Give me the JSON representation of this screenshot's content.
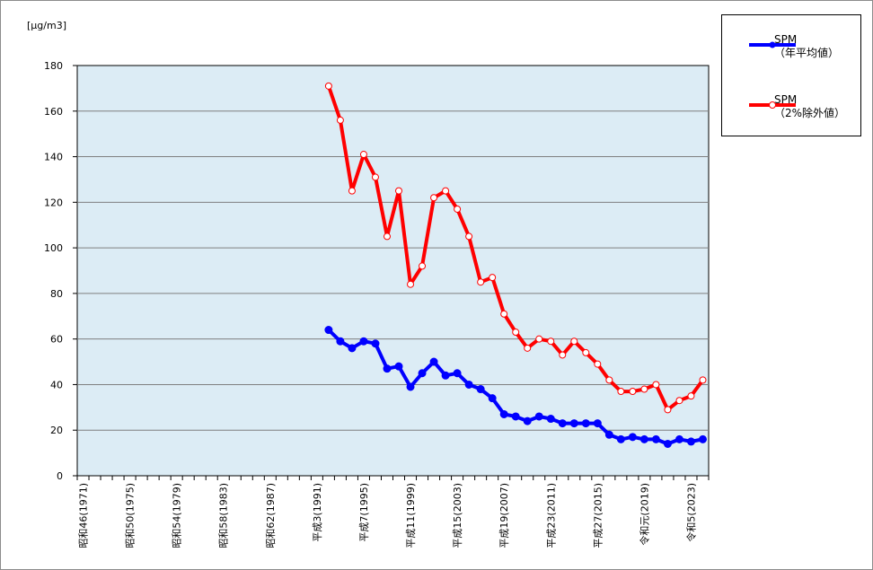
{
  "chart_data": {
    "type": "line",
    "ylabel": "[μg/m3]",
    "ylim": [
      0,
      180
    ],
    "yticks": [
      0,
      20,
      40,
      60,
      80,
      100,
      120,
      140,
      160,
      180
    ],
    "grid": true,
    "legend_position": "top-right",
    "background_color": "#dcecf5",
    "x": [
      1971,
      1972,
      1973,
      1974,
      1975,
      1976,
      1977,
      1978,
      1979,
      1980,
      1981,
      1982,
      1983,
      1984,
      1985,
      1986,
      1987,
      1988,
      1989,
      1990,
      1991,
      1992,
      1993,
      1994,
      1995,
      1996,
      1997,
      1998,
      1999,
      2000,
      2001,
      2002,
      2003,
      2004,
      2005,
      2006,
      2007,
      2008,
      2009,
      2010,
      2011,
      2012,
      2013,
      2014,
      2015,
      2016,
      2017,
      2018,
      2019,
      2020,
      2021,
      2022,
      2023,
      2024
    ],
    "xtick_labels": [
      {
        "x": 1971,
        "label": "昭和46(1971)"
      },
      {
        "x": 1975,
        "label": "昭和50(1975)"
      },
      {
        "x": 1979,
        "label": "昭和54(1979)"
      },
      {
        "x": 1983,
        "label": "昭和58(1983)"
      },
      {
        "x": 1987,
        "label": "昭和62(1987)"
      },
      {
        "x": 1991,
        "label": "平成3(1991)"
      },
      {
        "x": 1995,
        "label": "平成7(1995)"
      },
      {
        "x": 1999,
        "label": "平成11(1999)"
      },
      {
        "x": 2003,
        "label": "平成15(2003)"
      },
      {
        "x": 2007,
        "label": "平成19(2007)"
      },
      {
        "x": 2011,
        "label": "平成23(2011)"
      },
      {
        "x": 2015,
        "label": "平成27(2015)"
      },
      {
        "x": 2019,
        "label": "令和元(2019)"
      },
      {
        "x": 2023,
        "label": "令和5(2023)"
      }
    ],
    "series": [
      {
        "name": "SPM\n（年平均値）",
        "legend_lines": [
          "SPM",
          "（年平均値）"
        ],
        "color": "#0000ff",
        "marker": "filled-circle",
        "points": [
          [
            1992,
            64
          ],
          [
            1993,
            59
          ],
          [
            1994,
            56
          ],
          [
            1995,
            59
          ],
          [
            1996,
            58
          ],
          [
            1997,
            47
          ],
          [
            1998,
            48
          ],
          [
            1999,
            39
          ],
          [
            2000,
            45
          ],
          [
            2001,
            50
          ],
          [
            2002,
            44
          ],
          [
            2003,
            45
          ],
          [
            2004,
            40
          ],
          [
            2005,
            38
          ],
          [
            2006,
            34
          ],
          [
            2007,
            27
          ],
          [
            2008,
            26
          ],
          [
            2009,
            24
          ],
          [
            2010,
            26
          ],
          [
            2011,
            25
          ],
          [
            2012,
            23
          ],
          [
            2013,
            23
          ],
          [
            2014,
            23
          ],
          [
            2015,
            23
          ],
          [
            2016,
            18
          ],
          [
            2017,
            16
          ],
          [
            2018,
            17
          ],
          [
            2019,
            16
          ],
          [
            2020,
            16
          ],
          [
            2021,
            14
          ],
          [
            2022,
            16
          ],
          [
            2023,
            15
          ],
          [
            2024,
            16
          ]
        ]
      },
      {
        "name": "SPM\n（2%除外値）",
        "legend_lines": [
          "SPM",
          "（2%除外値）"
        ],
        "color": "#ff0000",
        "marker": "open-circle",
        "points": [
          [
            1992,
            171
          ],
          [
            1993,
            156
          ],
          [
            1994,
            125
          ],
          [
            1995,
            141
          ],
          [
            1996,
            131
          ],
          [
            1997,
            105
          ],
          [
            1998,
            125
          ],
          [
            1999,
            84
          ],
          [
            2000,
            92
          ],
          [
            2001,
            122
          ],
          [
            2002,
            125
          ],
          [
            2003,
            117
          ],
          [
            2004,
            105
          ],
          [
            2005,
            85
          ],
          [
            2006,
            87
          ],
          [
            2007,
            71
          ],
          [
            2008,
            63
          ],
          [
            2009,
            56
          ],
          [
            2010,
            60
          ],
          [
            2011,
            59
          ],
          [
            2012,
            53
          ],
          [
            2013,
            59
          ],
          [
            2014,
            54
          ],
          [
            2015,
            49
          ],
          [
            2016,
            42
          ],
          [
            2017,
            37
          ],
          [
            2018,
            37
          ],
          [
            2019,
            38
          ],
          [
            2020,
            40
          ],
          [
            2021,
            29
          ],
          [
            2022,
            33
          ],
          [
            2023,
            35
          ],
          [
            2024,
            42
          ]
        ]
      }
    ]
  }
}
